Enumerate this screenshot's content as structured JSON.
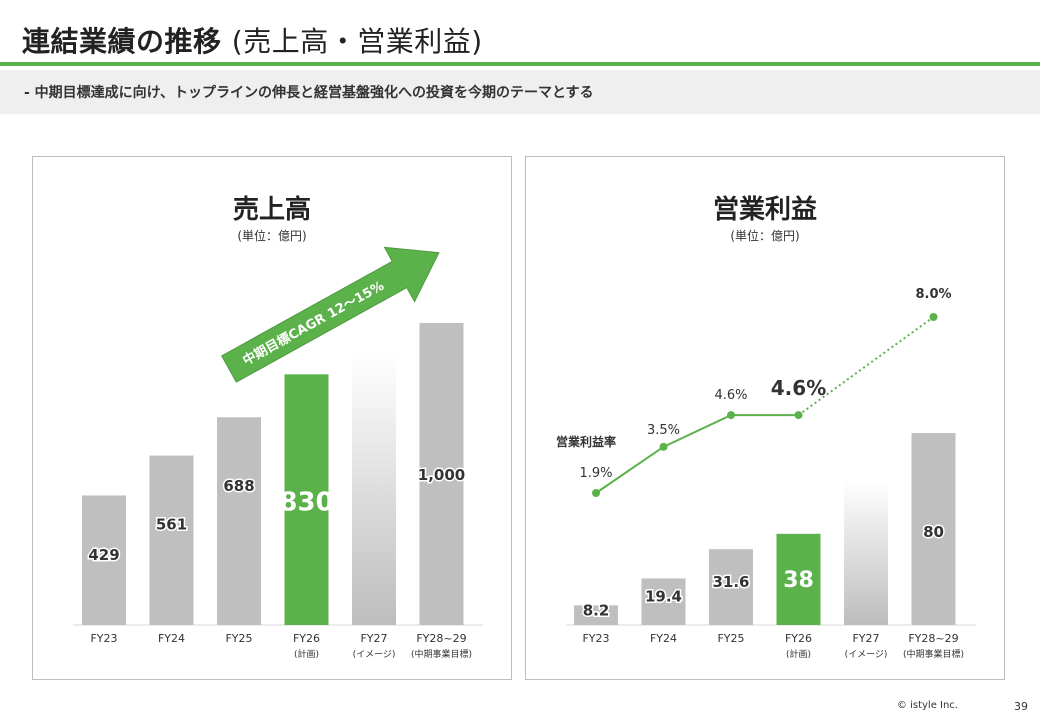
{
  "title": {
    "main": "連結業績の推移",
    "sub": "(売上高・営業利益)"
  },
  "subtitle": "- 中期目標達成に向け、トップラインの伸長と経営基盤強化への投資を今期のテーマとする",
  "colors": {
    "accent": "#5bb14a",
    "bar": "#bfbfbf",
    "highlight": "#5bb14a",
    "text": "#333333"
  },
  "chart_data": [
    {
      "type": "bar",
      "title": "売上高",
      "unit": "(単位：億円)",
      "categories": [
        "FY23",
        "FY24",
        "FY25",
        "FY26",
        "FY27",
        "FY28~29"
      ],
      "category_notes": [
        "",
        "",
        "",
        "(計画)",
        "(イメージ)",
        "(中期事業目標)"
      ],
      "values": [
        429,
        561,
        688,
        830,
        null,
        1000
      ],
      "labels": [
        "429",
        "561",
        "688",
        "830",
        "",
        "1,000"
      ],
      "image_bar_value": 900,
      "highlight_index": 3,
      "arrow_label": "中期目標CAGR 12～15%",
      "ylim": [
        0,
        1000
      ]
    },
    {
      "type": "bar",
      "title": "営業利益",
      "unit": "(単位：億円)",
      "categories": [
        "FY23",
        "FY24",
        "FY25",
        "FY26",
        "FY27",
        "FY28~29"
      ],
      "category_notes": [
        "",
        "",
        "",
        "(計画)",
        "(イメージ)",
        "(中期事業目標)"
      ],
      "values": [
        8.2,
        19.4,
        31.6,
        38,
        null,
        80
      ],
      "labels": [
        "8.2",
        "19.4",
        "31.6",
        "38",
        "",
        "80"
      ],
      "image_bar_value": 60,
      "highlight_index": 3,
      "ylim": [
        0,
        80
      ],
      "margin_series": {
        "name": "営業利益率",
        "values": [
          1.9,
          3.5,
          4.6,
          4.6,
          null,
          8.0
        ],
        "labels": [
          "1.9%",
          "3.5%",
          "4.6%",
          "4.6%",
          "",
          "8.0%"
        ],
        "ylim": [
          1.9,
          8.0
        ]
      }
    }
  ],
  "footer": {
    "copyright": "© istyle Inc.",
    "page": "39"
  }
}
